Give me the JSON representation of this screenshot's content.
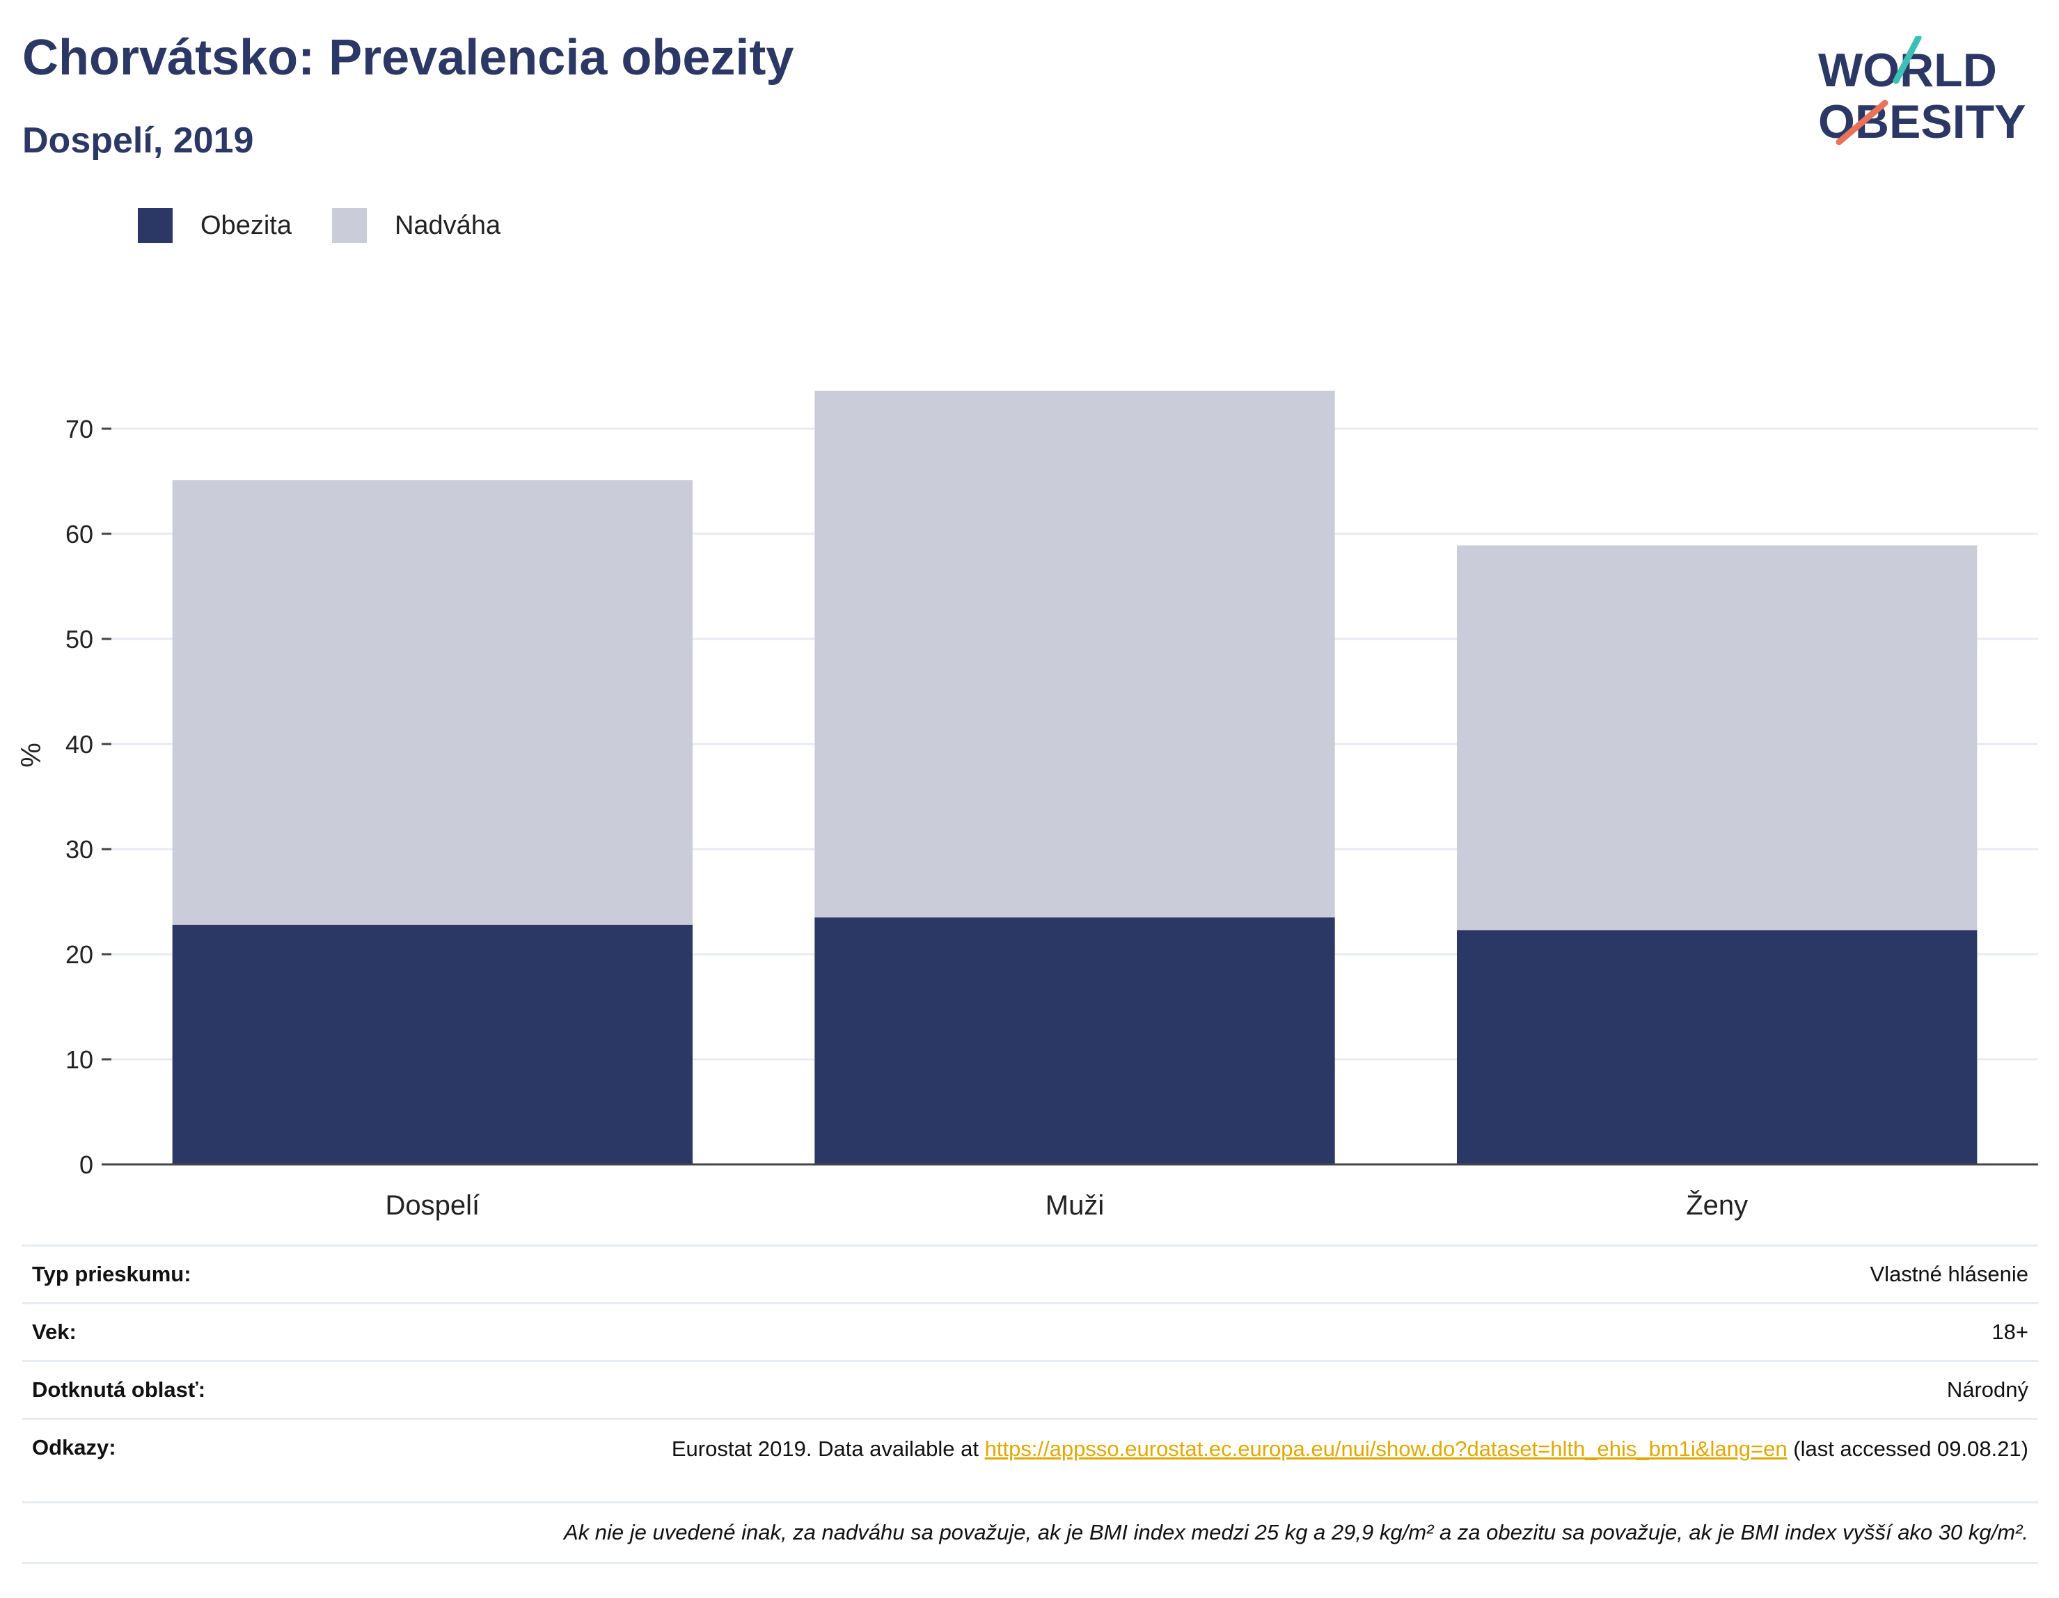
{
  "header": {
    "title": "Chorvátsko: Prevalencia obezity",
    "subtitle": "Dospelí, 2019"
  },
  "logo": {
    "line1": "WORLD",
    "line2": "OBESITY",
    "colors": {
      "text": "#2b3764",
      "slash_top": "#3bbfb6",
      "slash_bottom": "#e9735a"
    }
  },
  "colors": {
    "obesity": "#2b3764",
    "overweight": "#cacdd9"
  },
  "chart_data": {
    "type": "bar",
    "stacked": true,
    "categories": [
      "Dospelí",
      "Muži",
      "Ženy"
    ],
    "series": [
      {
        "name": "Obezita",
        "values": [
          22.8,
          23.5,
          22.3
        ]
      },
      {
        "name": "Nadváha",
        "values": [
          42.3,
          50.1,
          36.6
        ]
      }
    ],
    "title": "",
    "xlabel": "",
    "ylabel": "%",
    "ylim": [
      0,
      80
    ],
    "yticks": [
      0,
      10,
      20,
      30,
      40,
      50,
      60,
      70
    ],
    "grid": true,
    "legend_position": "top-left"
  },
  "info": {
    "survey_type": {
      "label": "Typ prieskumu:",
      "value": "Vlastné hlásenie"
    },
    "age": {
      "label": "Vek:",
      "value": "18+"
    },
    "area": {
      "label": "Dotknutá oblasť:",
      "value": "Národný"
    },
    "references": {
      "label": "Odkazy:",
      "text_before": "Eurostat 2019. Data available at ",
      "link": "https://appsso.eurostat.ec.europa.eu/nui/show.do?dataset=hlth_ehis_bm1i&lang=en",
      "text_after": " (last accessed 09.08.21)"
    },
    "note": "Ak nie je uvedené inak, za nadváhu sa považuje, ak je BMI index medzi 25 kg a 29,9 kg/m² a za obezitu sa považuje, ak je BMI index vyšší ako 30 kg/m²."
  }
}
